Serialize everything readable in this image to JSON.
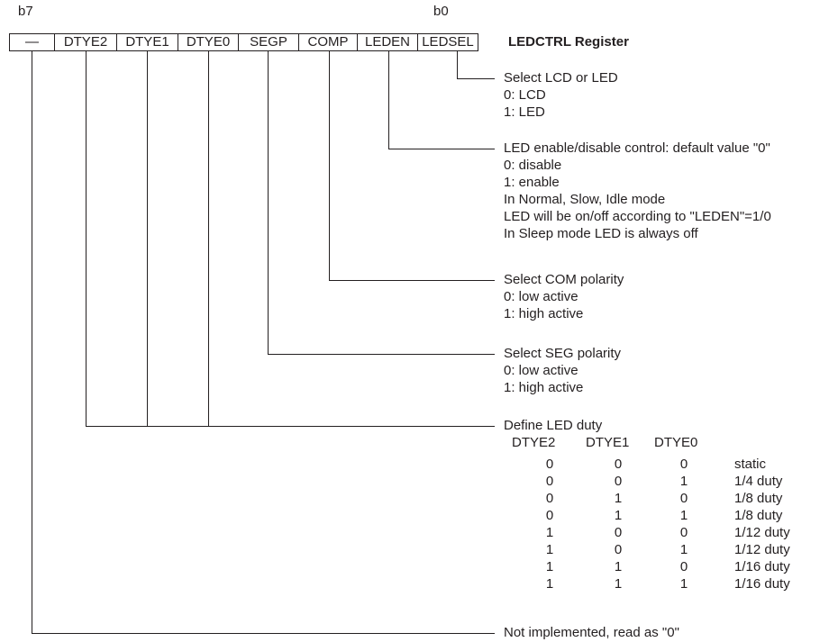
{
  "bit_labels": {
    "msb": "b7",
    "lsb": "b0"
  },
  "register": {
    "title": "LEDCTRL Register",
    "bits": [
      "—",
      "DTYE2",
      "DTYE1",
      "DTYE0",
      "SEGP",
      "COMP",
      "LEDEN",
      "LEDSEL"
    ]
  },
  "descriptions": {
    "ledsel": [
      "Select LCD or LED",
      "0: LCD",
      "1: LED"
    ],
    "leden": [
      "LED enable/disable control: default value \"0\"",
      "0: disable",
      "1: enable",
      "In Normal, Slow, Idle mode",
      "LED will be on/off according to \"LEDEN\"=1/0",
      "In Sleep mode LED is always off"
    ],
    "comp": [
      "Select COM polarity",
      "0: low active",
      "1: high active"
    ],
    "segp": [
      "Select SEG polarity",
      "0: low active",
      "1: high active"
    ],
    "duty": {
      "title": "Define LED duty",
      "headers": [
        "DTYE2",
        "DTYE1",
        "DTYE0"
      ],
      "rows": [
        [
          "0",
          "0",
          "0",
          "static"
        ],
        [
          "0",
          "0",
          "1",
          "1/4 duty"
        ],
        [
          "0",
          "1",
          "0",
          "1/8 duty"
        ],
        [
          "0",
          "1",
          "1",
          "1/8 duty"
        ],
        [
          "1",
          "0",
          "0",
          "1/12 duty"
        ],
        [
          "1",
          "0",
          "1",
          "1/12 duty"
        ],
        [
          "1",
          "1",
          "0",
          "1/16 duty"
        ],
        [
          "1",
          "1",
          "1",
          "1/16 duty"
        ]
      ]
    },
    "b7": [
      "Not implemented, read as \"0\""
    ]
  }
}
